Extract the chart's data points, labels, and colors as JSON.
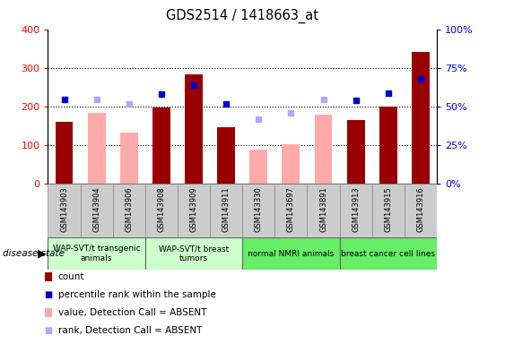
{
  "title": "GDS2514 / 1418663_at",
  "samples": [
    "GSM143903",
    "GSM143904",
    "GSM143906",
    "GSM143908",
    "GSM143909",
    "GSM143911",
    "GSM143330",
    "GSM143697",
    "GSM143891",
    "GSM143913",
    "GSM143915",
    "GSM143916"
  ],
  "count": [
    160,
    null,
    null,
    197,
    283,
    148,
    null,
    null,
    null,
    165,
    201,
    342
  ],
  "value_absent": [
    null,
    183,
    133,
    null,
    null,
    null,
    90,
    102,
    179,
    null,
    null,
    null
  ],
  "rank_present_pct": [
    54.5,
    null,
    null,
    58.3,
    64.0,
    52.0,
    null,
    null,
    null,
    54.0,
    58.5,
    68.0
  ],
  "rank_absent_pct": [
    null,
    54.5,
    51.8,
    null,
    null,
    null,
    42.0,
    46.0,
    54.5,
    null,
    null,
    null
  ],
  "ylim_left": [
    0,
    400
  ],
  "ylim_right": [
    0,
    100
  ],
  "yticks_left": [
    0,
    100,
    200,
    300,
    400
  ],
  "yticks_right": [
    0,
    25,
    50,
    75,
    100
  ],
  "ytick_labels_right": [
    "0%",
    "25%",
    "50%",
    "75%",
    "100%"
  ],
  "groups": [
    {
      "label": "WAP-SVT/t transgenic\nanimals",
      "start": 0,
      "end": 3,
      "color": "#ccffcc"
    },
    {
      "label": "WAP-SVT/t breast\ntumors",
      "start": 3,
      "end": 6,
      "color": "#ccffcc"
    },
    {
      "label": "normal NMRI animals",
      "start": 6,
      "end": 9,
      "color": "#66ee66"
    },
    {
      "label": "breast cancer cell lines",
      "start": 9,
      "end": 12,
      "color": "#66ee66"
    }
  ],
  "bar_color_count": "#990000",
  "bar_color_absent": "#ffaaaa",
  "dot_color_present": "#0000cc",
  "dot_color_absent": "#aaaaff",
  "sample_box_color": "#cccccc",
  "group_line_color": "#666666"
}
